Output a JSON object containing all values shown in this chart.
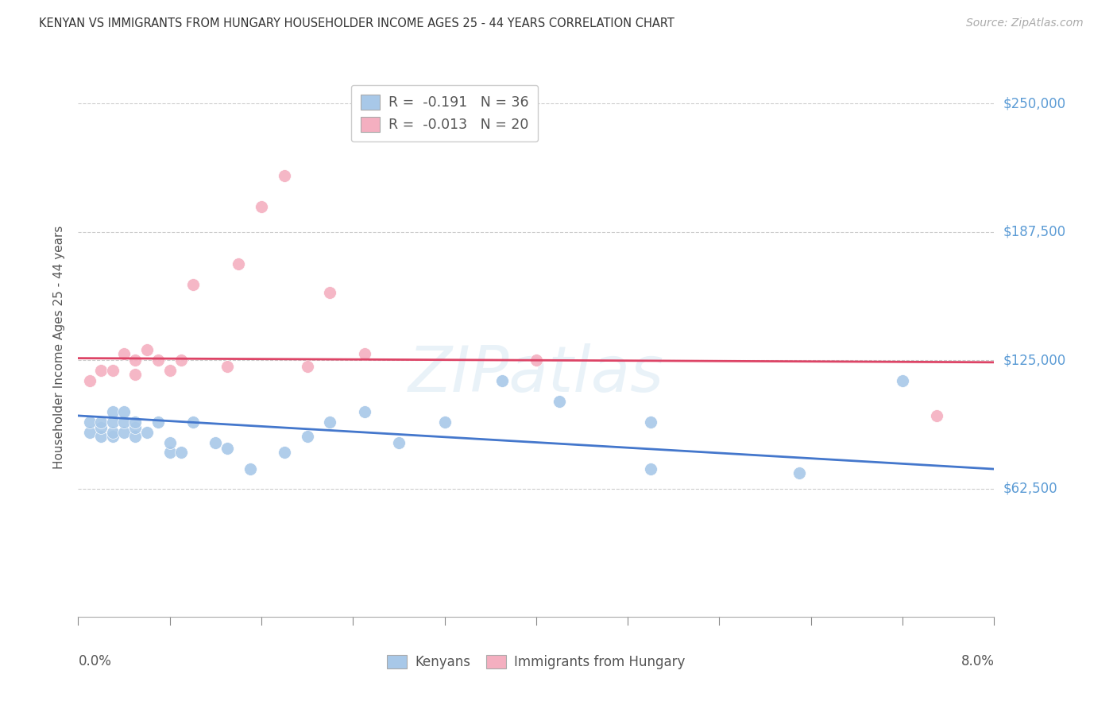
{
  "title": "KENYAN VS IMMIGRANTS FROM HUNGARY HOUSEHOLDER INCOME AGES 25 - 44 YEARS CORRELATION CHART",
  "source": "Source: ZipAtlas.com",
  "ylabel": "Householder Income Ages 25 - 44 years",
  "yticks": [
    62500,
    125000,
    187500,
    250000
  ],
  "ytick_labels": [
    "$62,500",
    "$125,000",
    "$187,500",
    "$250,000"
  ],
  "xmin": 0.0,
  "xmax": 0.08,
  "ymin": 0,
  "ymax": 262500,
  "watermark": "ZIPatlas",
  "blue_color": "#a8c8e8",
  "pink_color": "#f4afc0",
  "line_blue_color": "#4477cc",
  "line_pink_color": "#dd4466",
  "kenyans_x": [
    0.001,
    0.001,
    0.002,
    0.002,
    0.002,
    0.003,
    0.003,
    0.003,
    0.003,
    0.004,
    0.004,
    0.004,
    0.005,
    0.005,
    0.005,
    0.006,
    0.007,
    0.008,
    0.008,
    0.009,
    0.01,
    0.012,
    0.013,
    0.015,
    0.018,
    0.02,
    0.022,
    0.025,
    0.028,
    0.032,
    0.037,
    0.042,
    0.05,
    0.05,
    0.063,
    0.072
  ],
  "kenyans_y": [
    90000,
    95000,
    88000,
    92000,
    95000,
    88000,
    90000,
    95000,
    100000,
    90000,
    95000,
    100000,
    88000,
    92000,
    95000,
    90000,
    95000,
    80000,
    85000,
    80000,
    95000,
    85000,
    82000,
    72000,
    80000,
    88000,
    95000,
    100000,
    85000,
    95000,
    115000,
    105000,
    95000,
    72000,
    70000,
    115000
  ],
  "hungary_x": [
    0.001,
    0.002,
    0.003,
    0.004,
    0.005,
    0.005,
    0.006,
    0.007,
    0.008,
    0.009,
    0.01,
    0.013,
    0.014,
    0.016,
    0.018,
    0.02,
    0.022,
    0.025,
    0.04,
    0.075
  ],
  "hungary_y": [
    115000,
    120000,
    120000,
    128000,
    118000,
    125000,
    130000,
    125000,
    120000,
    125000,
    162000,
    122000,
    172000,
    200000,
    215000,
    122000,
    158000,
    128000,
    125000,
    98000
  ],
  "blue_trendline_x": [
    0.0,
    0.08
  ],
  "blue_trendline_y": [
    98000,
    72000
  ],
  "pink_trendline_x": [
    0.0,
    0.08
  ],
  "pink_trendline_y": [
    126000,
    124000
  ]
}
